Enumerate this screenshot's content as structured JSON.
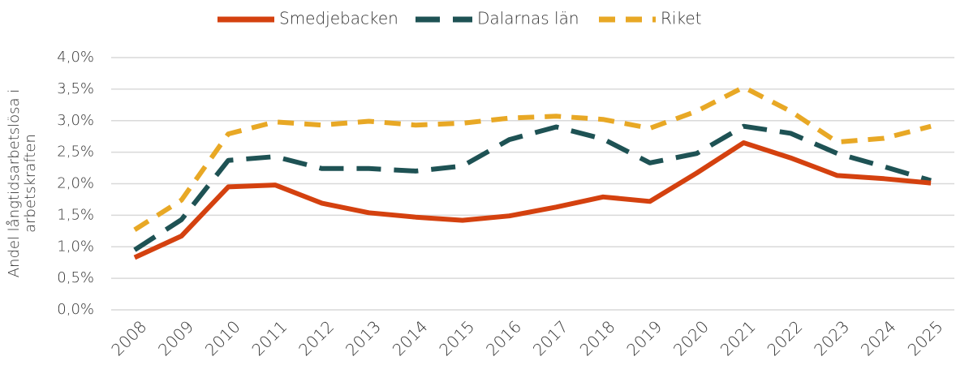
{
  "chart_data": {
    "type": "line",
    "ylabel": [
      "Andel långtidsarbetslösa i",
      "arbetskraften"
    ],
    "categories": [
      "2008",
      "2009",
      "2010",
      "2011",
      "2012",
      "2013",
      "2014",
      "2015",
      "2016",
      "2017",
      "2018",
      "2019",
      "2020",
      "2021",
      "2022",
      "2023",
      "2024",
      "2025"
    ],
    "series": [
      {
        "name": "Smedjebacken",
        "color": "#d4410f",
        "dash": "none",
        "values": [
          0.83,
          1.17,
          1.95,
          1.98,
          1.69,
          1.54,
          1.47,
          1.42,
          1.49,
          1.63,
          1.79,
          1.72,
          2.17,
          2.65,
          2.41,
          2.13,
          2.08,
          2.01
        ]
      },
      {
        "name": "Dalarnas län",
        "color": "#1e5254",
        "dash": "30 16",
        "values": [
          0.95,
          1.43,
          2.37,
          2.43,
          2.24,
          2.24,
          2.2,
          2.28,
          2.7,
          2.9,
          2.71,
          2.33,
          2.48,
          2.91,
          2.8,
          2.48,
          2.27,
          2.05
        ]
      },
      {
        "name": "Riket",
        "color": "#e8a825",
        "dash": "20 13",
        "values": [
          1.27,
          1.74,
          2.79,
          2.98,
          2.93,
          2.99,
          2.93,
          2.96,
          3.04,
          3.07,
          3.02,
          2.88,
          3.15,
          3.53,
          3.15,
          2.66,
          2.72,
          2.91
        ]
      }
    ],
    "ylim": [
      0,
      4
    ],
    "yticks": [
      {
        "value": 0,
        "label": "0,0%"
      },
      {
        "value": 0.5,
        "label": "0,5%"
      },
      {
        "value": 1,
        "label": "1,0%"
      },
      {
        "value": 1.5,
        "label": "1,5%"
      },
      {
        "value": 2,
        "label": "2,0%"
      },
      {
        "value": 2.5,
        "label": "2,5%"
      },
      {
        "value": 3,
        "label": "3,0%"
      },
      {
        "value": 3.5,
        "label": "3,5%"
      },
      {
        "value": 4,
        "label": "4,0%"
      }
    ],
    "grid": true,
    "legend": "top"
  }
}
